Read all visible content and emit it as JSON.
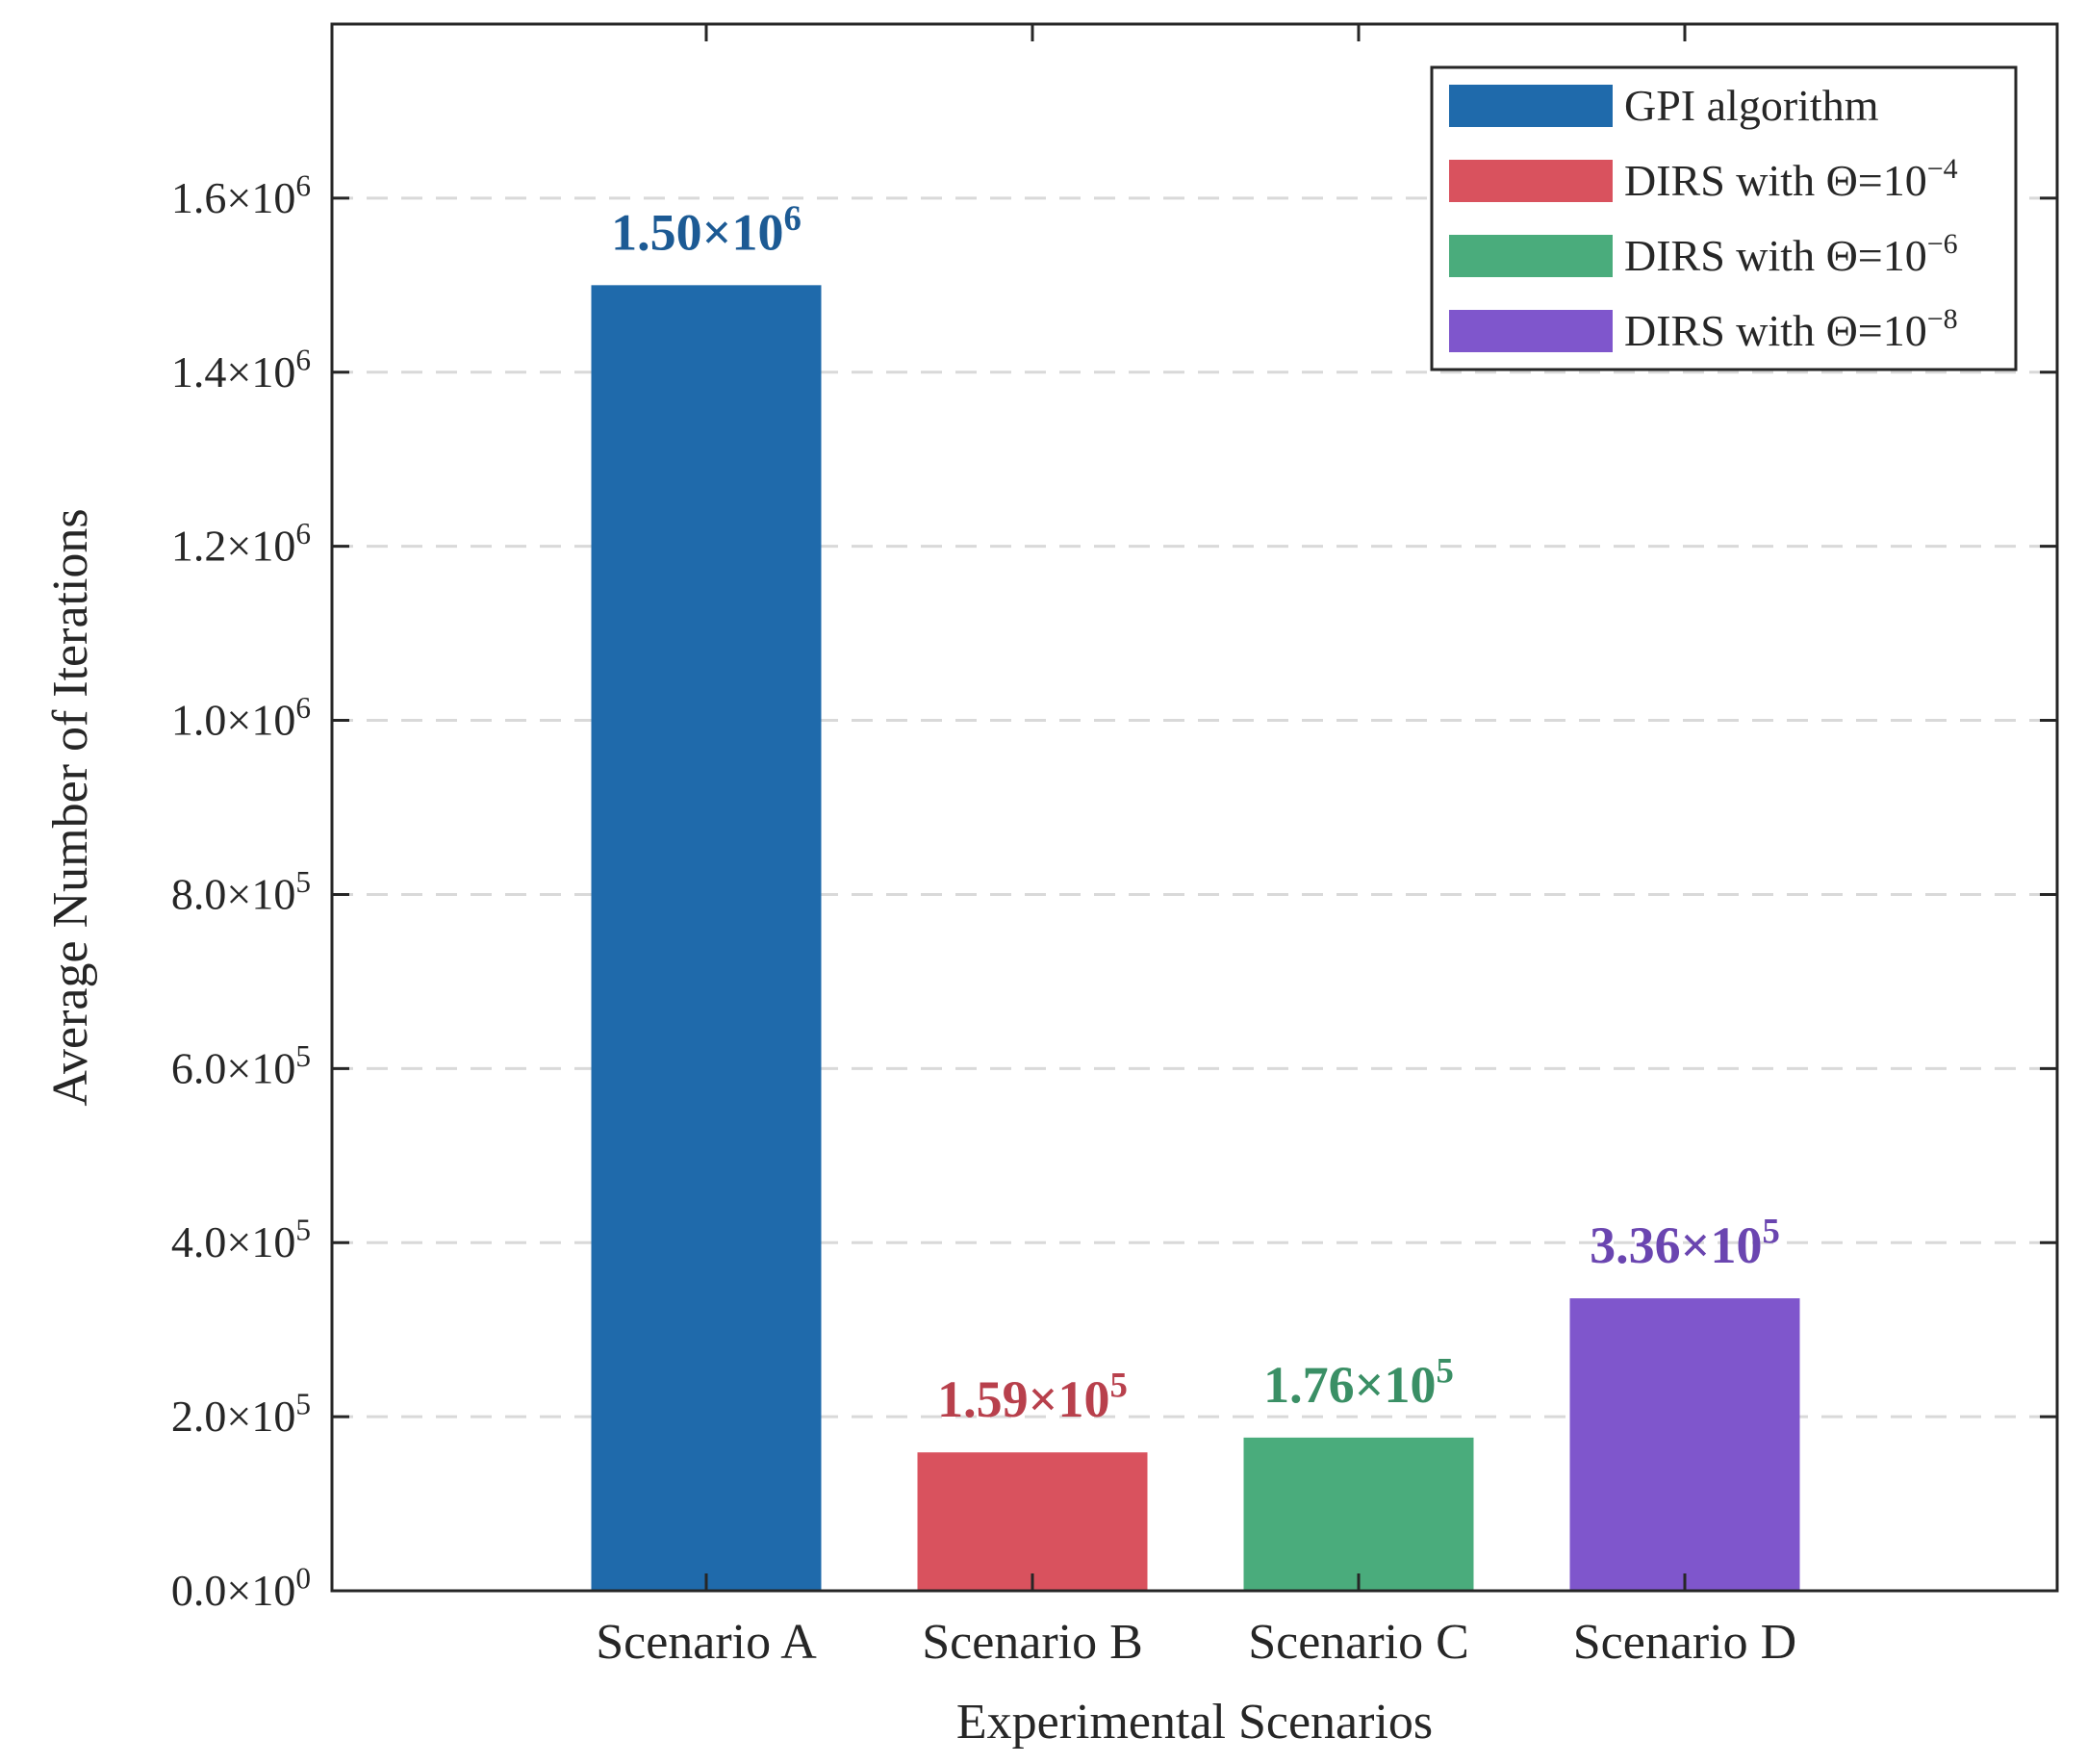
{
  "chart_data": {
    "type": "bar",
    "title": "",
    "xlabel": "Experimental Scenarios",
    "ylabel": "Average Number of Iterations",
    "categories": [
      "Scenario A",
      "Scenario B",
      "Scenario C",
      "Scenario D"
    ],
    "values": [
      1500000,
      159000,
      176000,
      336000
    ],
    "bar_labels": [
      {
        "mantissa": "1.50×10",
        "exp": "6"
      },
      {
        "mantissa": "1.59×10",
        "exp": "5"
      },
      {
        "mantissa": "1.76×10",
        "exp": "5"
      },
      {
        "mantissa": "3.36×10",
        "exp": "5"
      }
    ],
    "colors": [
      "#1f6aab",
      "#d9525e",
      "#4aac7c",
      "#7f56cc"
    ],
    "label_colors": [
      "#1c5a94",
      "#b8404c",
      "#3a8f65",
      "#6a45b0"
    ],
    "ylim": [
      0,
      1800000
    ],
    "yticks": [
      {
        "value": 0,
        "mantissa": "0.0×10",
        "exp": "0"
      },
      {
        "value": 200000,
        "mantissa": "2.0×10",
        "exp": "5"
      },
      {
        "value": 400000,
        "mantissa": "4.0×10",
        "exp": "5"
      },
      {
        "value": 600000,
        "mantissa": "6.0×10",
        "exp": "5"
      },
      {
        "value": 800000,
        "mantissa": "8.0×10",
        "exp": "5"
      },
      {
        "value": 1000000,
        "mantissa": "1.0×10",
        "exp": "6"
      },
      {
        "value": 1200000,
        "mantissa": "1.2×10",
        "exp": "6"
      },
      {
        "value": 1400000,
        "mantissa": "1.4×10",
        "exp": "6"
      },
      {
        "value": 1600000,
        "mantissa": "1.6×10",
        "exp": "6"
      }
    ],
    "grid": "y-dashed",
    "legend": {
      "placement": "top-right",
      "entries": [
        {
          "label": "GPI algorithm",
          "exp": ""
        },
        {
          "label": "DIRS with Θ=10",
          "exp": "−4"
        },
        {
          "label": "DIRS with Θ=10",
          "exp": "−6"
        },
        {
          "label": "DIRS with Θ=10",
          "exp": "−8"
        }
      ]
    }
  }
}
